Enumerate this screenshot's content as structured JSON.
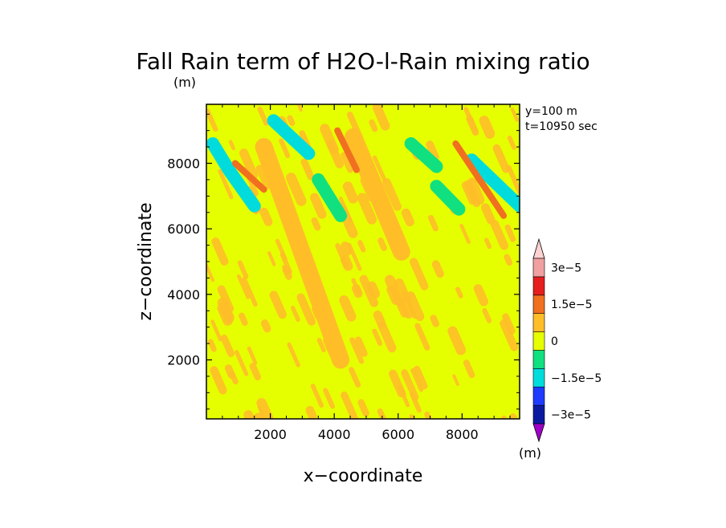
{
  "chart_data": {
    "type": "heatmap",
    "title": "Fall Rain term of H2O-l-Rain mixing ratio",
    "title_units": "(m)",
    "xlabel": "x−coordinate",
    "ylabel": "z−coordinate",
    "xlim": [
      0,
      9800
    ],
    "ylim": [
      200,
      9800
    ],
    "x_ticks": [
      2000,
      4000,
      6000,
      8000
    ],
    "y_ticks": [
      2000,
      4000,
      6000,
      8000
    ],
    "annotations": [
      "y=100  m",
      "t=10950 sec"
    ],
    "grid": false,
    "colorbar": {
      "placement": "right",
      "units_label": "(m)",
      "levels": [
        -3e-05,
        -2.25e-05,
        -1.5e-05,
        -7.5e-06,
        0,
        7.5e-06,
        1.5e-05,
        2.25e-05,
        3e-05
      ],
      "tick_values": [
        3e-05,
        1.5e-05,
        0,
        -1.5e-05,
        -3e-05
      ],
      "tick_labels": [
        "3e−5",
        "1.5e−5",
        "0",
        "−1.5e−5",
        "−3e−5"
      ],
      "colors": [
        "#a000c8",
        "#0a1aa0",
        "#1e3cff",
        "#00dcdc",
        "#10e080",
        "#e6ff00",
        "#ffbe28",
        "#f07020",
        "#e61e1e",
        "#f0a0a0",
        "#ffd2d2"
      ]
    },
    "features": [
      {
        "kind": "negative_band",
        "level": -1.5e-05,
        "path": [
          [
            200,
            8600
          ],
          [
            700,
            7800
          ],
          [
            1500,
            6700
          ]
        ]
      },
      {
        "kind": "negative_band",
        "level": -1.5e-05,
        "path": [
          [
            2100,
            9300
          ],
          [
            3200,
            8300
          ]
        ]
      },
      {
        "kind": "negative_band",
        "level": -7.5e-06,
        "path": [
          [
            3500,
            7500
          ],
          [
            4200,
            6400
          ]
        ]
      },
      {
        "kind": "negative_band",
        "level": -7.5e-06,
        "path": [
          [
            6400,
            8600
          ],
          [
            7200,
            7900
          ]
        ]
      },
      {
        "kind": "negative_band",
        "level": -1.5e-05,
        "path": [
          [
            8300,
            8100
          ],
          [
            9800,
            6700
          ]
        ]
      },
      {
        "kind": "negative_band",
        "level": -7.5e-06,
        "path": [
          [
            7200,
            7300
          ],
          [
            7900,
            6600
          ]
        ]
      },
      {
        "kind": "positive_band",
        "level": 7.5e-06,
        "path": [
          [
            1800,
            8500
          ],
          [
            4200,
            2000
          ]
        ]
      },
      {
        "kind": "positive_band",
        "level": 7.5e-06,
        "path": [
          [
            4600,
            8800
          ],
          [
            6100,
            5300
          ]
        ]
      },
      {
        "kind": "positive_band",
        "level": 1.5e-05,
        "path": [
          [
            4100,
            9000
          ],
          [
            4700,
            7800
          ]
        ]
      },
      {
        "kind": "positive_band",
        "level": 1.5e-05,
        "path": [
          [
            7800,
            8600
          ],
          [
            9300,
            6400
          ]
        ]
      },
      {
        "kind": "positive_band",
        "level": 1.5e-05,
        "path": [
          [
            900,
            8000
          ],
          [
            1800,
            7200
          ]
        ]
      }
    ]
  }
}
